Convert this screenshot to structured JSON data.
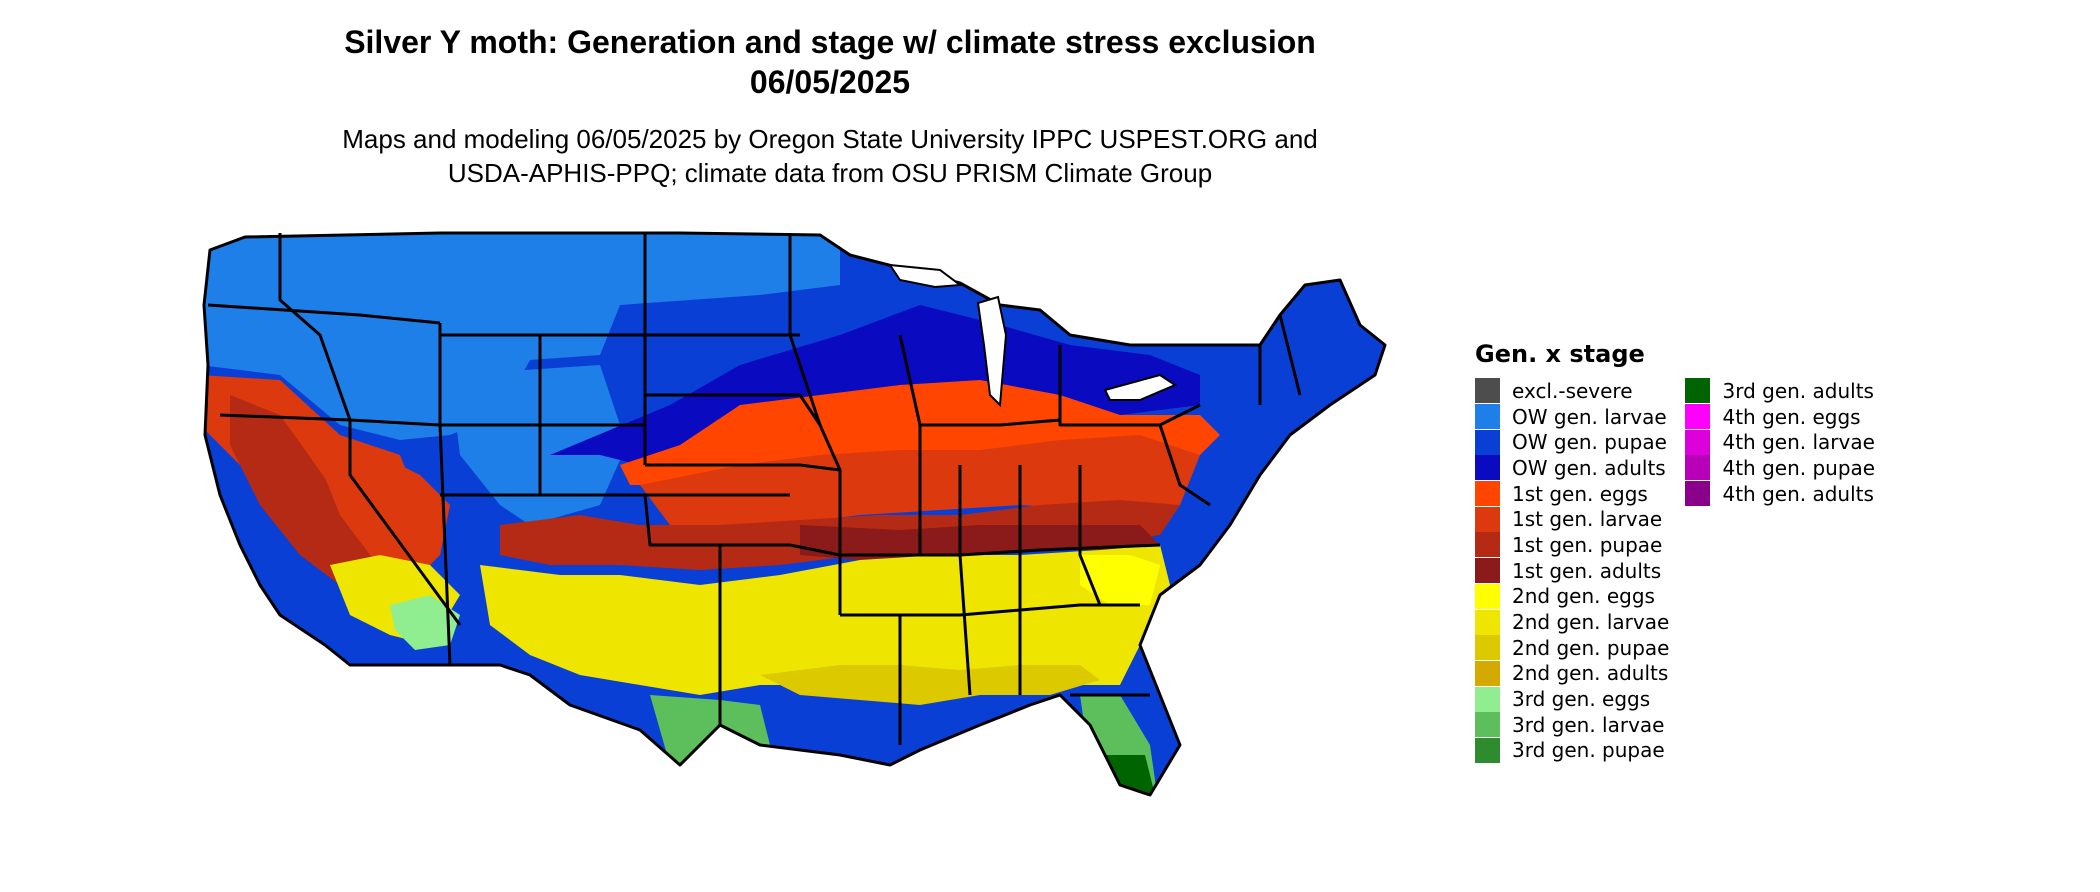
{
  "title": {
    "line1": "Silver Y moth: Generation and stage w/ climate stress exclusion",
    "line2": "06/05/2025"
  },
  "subtitle": {
    "line1": "Maps and modeling 06/05/2025 by Oregon State University IPPC USPEST.ORG and",
    "line2": "USDA-APHIS-PPQ; climate data from OSU PRISM Climate Group"
  },
  "legend": {
    "title": "Gen. x stage",
    "columns": [
      [
        {
          "label": "excl.-severe",
          "color": "#4d4d4d"
        },
        {
          "label": "OW gen. larvae",
          "color": "#1f7fe8"
        },
        {
          "label": "OW gen. pupae",
          "color": "#0a3fd6"
        },
        {
          "label": "OW gen. adults",
          "color": "#0a0ac0"
        },
        {
          "label": "1st gen. eggs",
          "color": "#ff4500"
        },
        {
          "label": "1st gen. larvae",
          "color": "#dc3a0e"
        },
        {
          "label": "1st gen. pupae",
          "color": "#b52a14"
        },
        {
          "label": "1st gen. adults",
          "color": "#8b1a1a"
        },
        {
          "label": "2nd gen. eggs",
          "color": "#ffff00"
        },
        {
          "label": "2nd gen. larvae",
          "color": "#eee600"
        },
        {
          "label": "2nd gen. pupae",
          "color": "#ddc900"
        },
        {
          "label": "2nd gen. adults",
          "color": "#d4aa00"
        },
        {
          "label": "3rd gen. eggs",
          "color": "#90ee90"
        },
        {
          "label": "3rd gen. larvae",
          "color": "#5cbf5c"
        },
        {
          "label": "3rd gen. pupae",
          "color": "#2e8b2e"
        }
      ],
      [
        {
          "label": "3rd gen. adults",
          "color": "#006400"
        },
        {
          "label": "4th gen. eggs",
          "color": "#ff00ff"
        },
        {
          "label": "4th gen. larvae",
          "color": "#dd00dd"
        },
        {
          "label": "4th gen. pupae",
          "color": "#b800b8"
        },
        {
          "label": "4th gen. adults",
          "color": "#8b008b"
        }
      ]
    ]
  }
}
